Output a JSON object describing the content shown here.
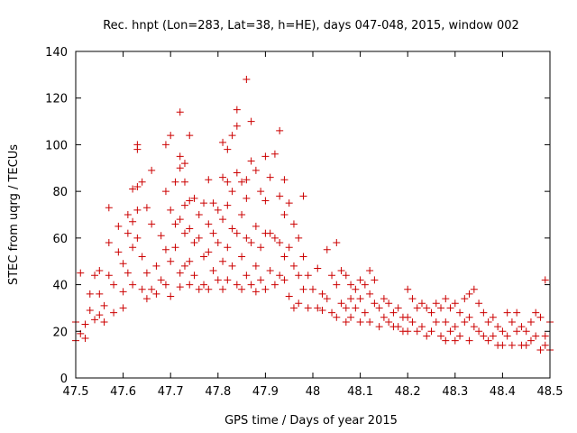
{
  "chart_data": {
    "type": "scatter",
    "title": "Rec. hnpt (Lon=283, Lat=38, h=HE), days 047-048, 2015, window 002",
    "xlabel": "GPS time / Days of year 2015",
    "ylabel": "STEC from uqrg / TECUs",
    "xlim": [
      47.5,
      48.5
    ],
    "ylim": [
      0,
      140
    ],
    "xticks": [
      "47.5",
      "47.6",
      "47.7",
      "47.8",
      "47.9",
      "48",
      "48.1",
      "48.2",
      "48.3",
      "48.4",
      "48.5"
    ],
    "yticks": [
      "0",
      "20",
      "40",
      "60",
      "80",
      "100",
      "120",
      "140"
    ],
    "marker": "+",
    "color": "#cc0000",
    "series": [
      {
        "name": "STEC",
        "points": [
          [
            47.5,
            16
          ],
          [
            47.5,
            24
          ],
          [
            47.51,
            19
          ],
          [
            47.51,
            45
          ],
          [
            47.52,
            23
          ],
          [
            47.52,
            17
          ],
          [
            47.53,
            29
          ],
          [
            47.53,
            36
          ],
          [
            47.54,
            25
          ],
          [
            47.54,
            44
          ],
          [
            47.55,
            27
          ],
          [
            47.55,
            36
          ],
          [
            47.55,
            46
          ],
          [
            47.56,
            31
          ],
          [
            47.56,
            24
          ],
          [
            47.57,
            73
          ],
          [
            47.57,
            58
          ],
          [
            47.57,
            44
          ],
          [
            47.58,
            40
          ],
          [
            47.58,
            28
          ],
          [
            47.59,
            65
          ],
          [
            47.59,
            54
          ],
          [
            47.6,
            49
          ],
          [
            47.6,
            37
          ],
          [
            47.6,
            30
          ],
          [
            47.61,
            62
          ],
          [
            47.61,
            70
          ],
          [
            47.61,
            45
          ],
          [
            47.62,
            81
          ],
          [
            47.62,
            67
          ],
          [
            47.62,
            56
          ],
          [
            47.62,
            40
          ],
          [
            47.63,
            100
          ],
          [
            47.63,
            98
          ],
          [
            47.63,
            82
          ],
          [
            47.63,
            72
          ],
          [
            47.63,
            60
          ],
          [
            47.64,
            84
          ],
          [
            47.64,
            52
          ],
          [
            47.64,
            38
          ],
          [
            47.65,
            73
          ],
          [
            47.65,
            45
          ],
          [
            47.65,
            34
          ],
          [
            47.66,
            89
          ],
          [
            47.66,
            66
          ],
          [
            47.66,
            38
          ],
          [
            47.67,
            48
          ],
          [
            47.67,
            36
          ],
          [
            47.68,
            61
          ],
          [
            47.68,
            42
          ],
          [
            47.69,
            100
          ],
          [
            47.69,
            80
          ],
          [
            47.69,
            55
          ],
          [
            47.69,
            40
          ],
          [
            47.7,
            104
          ],
          [
            47.7,
            72
          ],
          [
            47.7,
            50
          ],
          [
            47.7,
            35
          ],
          [
            47.71,
            84
          ],
          [
            47.71,
            66
          ],
          [
            47.71,
            56
          ],
          [
            47.72,
            114
          ],
          [
            47.72,
            95
          ],
          [
            47.72,
            90
          ],
          [
            47.72,
            68
          ],
          [
            47.72,
            45
          ],
          [
            47.72,
            39
          ],
          [
            47.73,
            92
          ],
          [
            47.73,
            84
          ],
          [
            47.73,
            74
          ],
          [
            47.73,
            62
          ],
          [
            47.73,
            48
          ],
          [
            47.74,
            104
          ],
          [
            47.74,
            76
          ],
          [
            47.74,
            64
          ],
          [
            47.74,
            50
          ],
          [
            47.74,
            40
          ],
          [
            47.75,
            77
          ],
          [
            47.75,
            58
          ],
          [
            47.75,
            44
          ],
          [
            47.76,
            70
          ],
          [
            47.76,
            60
          ],
          [
            47.76,
            38
          ],
          [
            47.77,
            75
          ],
          [
            47.77,
            52
          ],
          [
            47.77,
            40
          ],
          [
            47.78,
            85
          ],
          [
            47.78,
            66
          ],
          [
            47.78,
            54
          ],
          [
            47.78,
            38
          ],
          [
            47.79,
            75
          ],
          [
            47.79,
            62
          ],
          [
            47.79,
            46
          ],
          [
            47.8,
            72
          ],
          [
            47.8,
            58
          ],
          [
            47.8,
            42
          ],
          [
            47.81,
            101
          ],
          [
            47.81,
            86
          ],
          [
            47.81,
            68
          ],
          [
            47.81,
            50
          ],
          [
            47.81,
            38
          ],
          [
            47.82,
            98
          ],
          [
            47.82,
            84
          ],
          [
            47.82,
            74
          ],
          [
            47.82,
            56
          ],
          [
            47.82,
            42
          ],
          [
            47.83,
            104
          ],
          [
            47.83,
            80
          ],
          [
            47.83,
            64
          ],
          [
            47.83,
            48
          ],
          [
            47.84,
            115
          ],
          [
            47.84,
            108
          ],
          [
            47.84,
            88
          ],
          [
            47.84,
            62
          ],
          [
            47.84,
            40
          ],
          [
            47.85,
            84
          ],
          [
            47.85,
            70
          ],
          [
            47.85,
            52
          ],
          [
            47.85,
            38
          ],
          [
            47.86,
            128
          ],
          [
            47.86,
            85
          ],
          [
            47.86,
            77
          ],
          [
            47.86,
            60
          ],
          [
            47.86,
            44
          ],
          [
            47.87,
            110
          ],
          [
            47.87,
            93
          ],
          [
            47.87,
            58
          ],
          [
            47.87,
            40
          ],
          [
            47.88,
            89
          ],
          [
            47.88,
            65
          ],
          [
            47.88,
            48
          ],
          [
            47.88,
            37
          ],
          [
            47.89,
            80
          ],
          [
            47.89,
            56
          ],
          [
            47.89,
            42
          ],
          [
            47.9,
            95
          ],
          [
            47.9,
            76
          ],
          [
            47.9,
            62
          ],
          [
            47.9,
            38
          ],
          [
            47.91,
            86
          ],
          [
            47.91,
            62
          ],
          [
            47.91,
            46
          ],
          [
            47.92,
            96
          ],
          [
            47.92,
            60
          ],
          [
            47.92,
            40
          ],
          [
            47.93,
            106
          ],
          [
            47.93,
            78
          ],
          [
            47.93,
            58
          ],
          [
            47.93,
            44
          ],
          [
            47.94,
            85
          ],
          [
            47.94,
            70
          ],
          [
            47.94,
            52
          ],
          [
            47.94,
            42
          ],
          [
            47.95,
            75
          ],
          [
            47.95,
            56
          ],
          [
            47.95,
            35
          ],
          [
            47.96,
            66
          ],
          [
            47.96,
            48
          ],
          [
            47.96,
            30
          ],
          [
            47.97,
            60
          ],
          [
            47.97,
            44
          ],
          [
            47.97,
            32
          ],
          [
            47.98,
            78
          ],
          [
            47.98,
            52
          ],
          [
            47.98,
            38
          ],
          [
            47.99,
            44
          ],
          [
            47.99,
            30
          ],
          [
            48.0,
            38
          ],
          [
            48.01,
            47
          ],
          [
            48.01,
            30
          ],
          [
            48.02,
            36
          ],
          [
            48.02,
            29
          ],
          [
            48.03,
            55
          ],
          [
            48.03,
            34
          ],
          [
            48.04,
            44
          ],
          [
            48.04,
            28
          ],
          [
            48.05,
            58
          ],
          [
            48.05,
            40
          ],
          [
            48.05,
            26
          ],
          [
            48.06,
            46
          ],
          [
            48.06,
            32
          ],
          [
            48.07,
            44
          ],
          [
            48.07,
            30
          ],
          [
            48.07,
            24
          ],
          [
            48.08,
            40
          ],
          [
            48.08,
            34
          ],
          [
            48.08,
            26
          ],
          [
            48.09,
            38
          ],
          [
            48.09,
            30
          ],
          [
            48.1,
            42
          ],
          [
            48.1,
            34
          ],
          [
            48.1,
            24
          ],
          [
            48.11,
            40
          ],
          [
            48.11,
            28
          ],
          [
            48.12,
            46
          ],
          [
            48.12,
            36
          ],
          [
            48.12,
            24
          ],
          [
            48.13,
            42
          ],
          [
            48.13,
            32
          ],
          [
            48.14,
            30
          ],
          [
            48.14,
            22
          ],
          [
            48.15,
            34
          ],
          [
            48.15,
            26
          ],
          [
            48.16,
            32
          ],
          [
            48.16,
            24
          ],
          [
            48.17,
            28
          ],
          [
            48.17,
            22
          ],
          [
            48.18,
            30
          ],
          [
            48.18,
            22
          ],
          [
            48.19,
            26
          ],
          [
            48.19,
            20
          ],
          [
            48.2,
            38
          ],
          [
            48.2,
            26
          ],
          [
            48.2,
            20
          ],
          [
            48.21,
            34
          ],
          [
            48.21,
            24
          ],
          [
            48.22,
            30
          ],
          [
            48.22,
            20
          ],
          [
            48.23,
            32
          ],
          [
            48.23,
            22
          ],
          [
            48.24,
            30
          ],
          [
            48.24,
            18
          ],
          [
            48.25,
            28
          ],
          [
            48.25,
            20
          ],
          [
            48.26,
            32
          ],
          [
            48.26,
            24
          ],
          [
            48.27,
            30
          ],
          [
            48.27,
            18
          ],
          [
            48.28,
            34
          ],
          [
            48.28,
            24
          ],
          [
            48.28,
            16
          ],
          [
            48.29,
            30
          ],
          [
            48.29,
            20
          ],
          [
            48.3,
            32
          ],
          [
            48.3,
            22
          ],
          [
            48.3,
            16
          ],
          [
            48.31,
            28
          ],
          [
            48.31,
            18
          ],
          [
            48.32,
            34
          ],
          [
            48.32,
            24
          ],
          [
            48.33,
            36
          ],
          [
            48.33,
            26
          ],
          [
            48.33,
            16
          ],
          [
            48.34,
            38
          ],
          [
            48.34,
            22
          ],
          [
            48.35,
            32
          ],
          [
            48.35,
            20
          ],
          [
            48.36,
            28
          ],
          [
            48.36,
            18
          ],
          [
            48.37,
            24
          ],
          [
            48.37,
            16
          ],
          [
            48.38,
            26
          ],
          [
            48.38,
            18
          ],
          [
            48.39,
            22
          ],
          [
            48.39,
            14
          ],
          [
            48.4,
            20
          ],
          [
            48.4,
            14
          ],
          [
            48.41,
            28
          ],
          [
            48.41,
            18
          ],
          [
            48.42,
            24
          ],
          [
            48.42,
            14
          ],
          [
            48.43,
            28
          ],
          [
            48.43,
            20
          ],
          [
            48.44,
            22
          ],
          [
            48.44,
            14
          ],
          [
            48.45,
            20
          ],
          [
            48.45,
            14
          ],
          [
            48.46,
            24
          ],
          [
            48.46,
            16
          ],
          [
            48.47,
            28
          ],
          [
            48.47,
            18
          ],
          [
            48.48,
            26
          ],
          [
            48.48,
            12
          ],
          [
            48.49,
            42
          ],
          [
            48.49,
            18
          ],
          [
            48.49,
            14
          ],
          [
            48.5,
            24
          ],
          [
            48.5,
            12
          ]
        ]
      }
    ]
  }
}
